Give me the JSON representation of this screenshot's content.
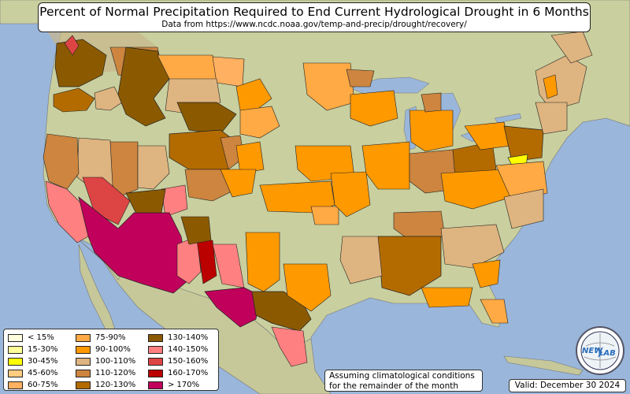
{
  "title": "Percent of Normal Precipitation Required to End Current Hydrological Drought in 6 Months",
  "subtitle": "Data from https://www.ncdc.noaa.gov/temp-and-precip/drought/recovery/",
  "legend": {
    "items": [
      {
        "label": "< 15%",
        "color": "#ffffe0"
      },
      {
        "label": "15-30%",
        "color": "#ffff99"
      },
      {
        "label": "30-45%",
        "color": "#ffff00"
      },
      {
        "label": "45-60%",
        "color": "#ffcc80"
      },
      {
        "label": "60-75%",
        "color": "#ffb060"
      },
      {
        "label": "75-90%",
        "color": "#ffaa44"
      },
      {
        "label": "90-100%",
        "color": "#ff9900"
      },
      {
        "label": "100-110%",
        "color": "#deb480"
      },
      {
        "label": "110-120%",
        "color": "#cd853f"
      },
      {
        "label": "120-130%",
        "color": "#b36b00"
      },
      {
        "label": "130-140%",
        "color": "#8b5a00"
      },
      {
        "label": "140-150%",
        "color": "#ff8080"
      },
      {
        "label": "150-160%",
        "color": "#dd4444"
      },
      {
        "label": "160-170%",
        "color": "#bb0000"
      },
      {
        "label": "> 170%",
        "color": "#c0005a"
      }
    ]
  },
  "note": {
    "line1": "Assuming climatological conditions",
    "line2": "for the remainder of the month"
  },
  "valid": "Valid: December 30 2024",
  "logo": {
    "line1": "NEW",
    "line2": "LAB"
  },
  "colors": {
    "ocean": "#9ab6da",
    "land": "#c9cf9e",
    "mountain": "#c7b78b"
  }
}
